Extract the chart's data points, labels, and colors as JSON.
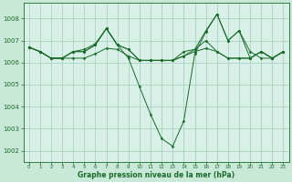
{
  "title": "Graphe pression niveau de la mer (hPa)",
  "background_color": "#c8e8d8",
  "plot_bg_color": "#d8f0e8",
  "grid_color": "#a0cdb8",
  "line_color": "#1a6b2a",
  "xlim": [
    -0.5,
    23.5
  ],
  "ylim": [
    1001.5,
    1008.7
  ],
  "yticks": [
    1002,
    1003,
    1004,
    1005,
    1006,
    1007,
    1008
  ],
  "xticks": [
    0,
    1,
    2,
    3,
    4,
    5,
    6,
    7,
    8,
    9,
    10,
    11,
    12,
    13,
    14,
    15,
    16,
    17,
    18,
    19,
    20,
    21,
    22,
    23
  ],
  "figsize": [
    3.2,
    2.0
  ],
  "dpi": 100,
  "series": [
    [
      1006.7,
      1006.5,
      1006.2,
      1006.2,
      1006.2,
      1006.2,
      1006.4,
      1006.65,
      1006.6,
      1006.3,
      1006.1,
      1006.1,
      1006.1,
      1006.1,
      1006.3,
      1006.5,
      1006.65,
      1006.5,
      1006.2,
      1006.2,
      1006.2,
      1006.5,
      1006.2,
      1006.5
    ],
    [
      1006.7,
      1006.5,
      1006.2,
      1006.2,
      1006.5,
      1006.5,
      1006.8,
      1007.55,
      1006.8,
      1006.6,
      1006.1,
      1006.1,
      1006.1,
      1006.1,
      1006.3,
      1006.6,
      1007.0,
      1006.5,
      1006.2,
      1006.2,
      1006.2,
      1006.5,
      1006.2,
      1006.5
    ],
    [
      1006.7,
      1006.5,
      1006.2,
      1006.2,
      1006.5,
      1006.5,
      1006.8,
      1007.55,
      1006.8,
      1006.2,
      1004.9,
      1003.65,
      1002.55,
      1002.2,
      1003.35,
      1006.4,
      1007.4,
      1008.2,
      1007.0,
      1007.45,
      1006.5,
      1006.2,
      1006.2,
      1006.5
    ],
    [
      1006.7,
      1006.5,
      1006.2,
      1006.2,
      1006.5,
      1006.6,
      1006.85,
      1007.55,
      1006.8,
      1006.6,
      1006.1,
      1006.1,
      1006.1,
      1006.1,
      1006.5,
      1006.6,
      1007.45,
      1008.2,
      1007.0,
      1007.45,
      1006.2,
      1006.5,
      1006.2,
      1006.5
    ]
  ]
}
